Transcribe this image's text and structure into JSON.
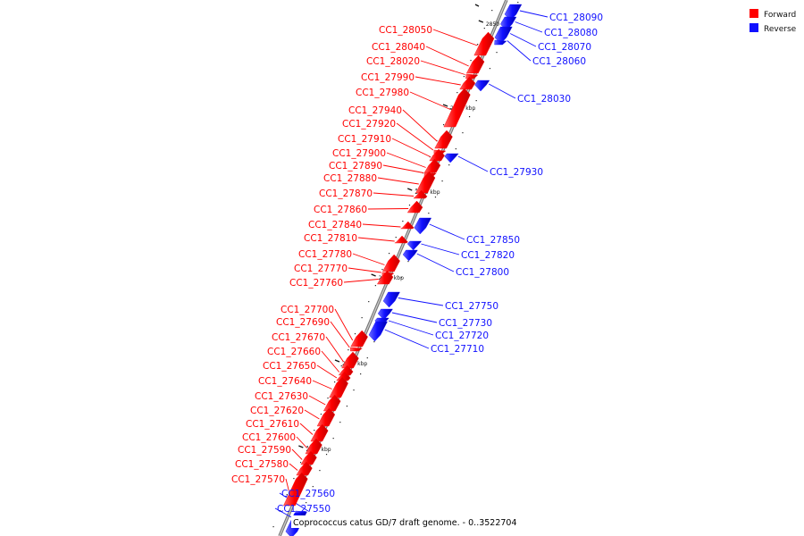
{
  "caption": "Coprococcus catus GD/7 draft genome. - 0..3522704",
  "legend": [
    {
      "label": "Forward",
      "color": "#ff0000"
    },
    {
      "label": "Reverse",
      "color": "#1010ff"
    }
  ],
  "colors": {
    "forward": "#ff0000",
    "reverse": "#1010ff",
    "axis": "#999999"
  },
  "ticks": [
    "2850 kbp",
    "2840 kbp",
    "2830 kbp",
    "2820 kbp",
    "2810 kbp",
    "2800 kbp"
  ],
  "genes": [
    {
      "label": "CC1_28090",
      "strand": "reverse"
    },
    {
      "label": "CC1_28080",
      "strand": "reverse"
    },
    {
      "label": "CC1_28070",
      "strand": "reverse"
    },
    {
      "label": "CC1_28060",
      "strand": "reverse"
    },
    {
      "label": "CC1_28050",
      "strand": "forward"
    },
    {
      "label": "CC1_28040",
      "strand": "forward"
    },
    {
      "label": "CC1_28020",
      "strand": "forward"
    },
    {
      "label": "CC1_27990",
      "strand": "forward"
    },
    {
      "label": "CC1_27980",
      "strand": "forward"
    },
    {
      "label": "CC1_28030",
      "strand": "reverse"
    },
    {
      "label": "CC1_27940",
      "strand": "forward"
    },
    {
      "label": "CC1_27920",
      "strand": "forward"
    },
    {
      "label": "CC1_27910",
      "strand": "forward"
    },
    {
      "label": "CC1_27900",
      "strand": "forward"
    },
    {
      "label": "CC1_27890",
      "strand": "forward"
    },
    {
      "label": "CC1_27930",
      "strand": "reverse"
    },
    {
      "label": "CC1_27880",
      "strand": "forward"
    },
    {
      "label": "CC1_27870",
      "strand": "forward"
    },
    {
      "label": "CC1_27860",
      "strand": "forward"
    },
    {
      "label": "CC1_27840",
      "strand": "forward"
    },
    {
      "label": "CC1_27850",
      "strand": "reverse"
    },
    {
      "label": "CC1_27810",
      "strand": "forward"
    },
    {
      "label": "CC1_27820",
      "strand": "reverse"
    },
    {
      "label": "CC1_27780",
      "strand": "forward"
    },
    {
      "label": "CC1_27800",
      "strand": "reverse"
    },
    {
      "label": "CC1_27770",
      "strand": "forward"
    },
    {
      "label": "CC1_27760",
      "strand": "forward"
    },
    {
      "label": "CC1_27750",
      "strand": "reverse"
    },
    {
      "label": "CC1_27700",
      "strand": "forward"
    },
    {
      "label": "CC1_27730",
      "strand": "reverse"
    },
    {
      "label": "CC1_27690",
      "strand": "forward"
    },
    {
      "label": "CC1_27720",
      "strand": "reverse"
    },
    {
      "label": "CC1_27670",
      "strand": "forward"
    },
    {
      "label": "CC1_27710",
      "strand": "reverse"
    },
    {
      "label": "CC1_27660",
      "strand": "forward"
    },
    {
      "label": "CC1_27650",
      "strand": "forward"
    },
    {
      "label": "CC1_27640",
      "strand": "forward"
    },
    {
      "label": "CC1_27630",
      "strand": "forward"
    },
    {
      "label": "CC1_27620",
      "strand": "forward"
    },
    {
      "label": "CC1_27610",
      "strand": "forward"
    },
    {
      "label": "CC1_27600",
      "strand": "forward"
    },
    {
      "label": "CC1_27590",
      "strand": "forward"
    },
    {
      "label": "CC1_27580",
      "strand": "forward"
    },
    {
      "label": "CC1_27570",
      "strand": "forward"
    },
    {
      "label": "CC1_27560",
      "strand": "reverse"
    },
    {
      "label": "CC1_27550",
      "strand": "reverse"
    }
  ]
}
